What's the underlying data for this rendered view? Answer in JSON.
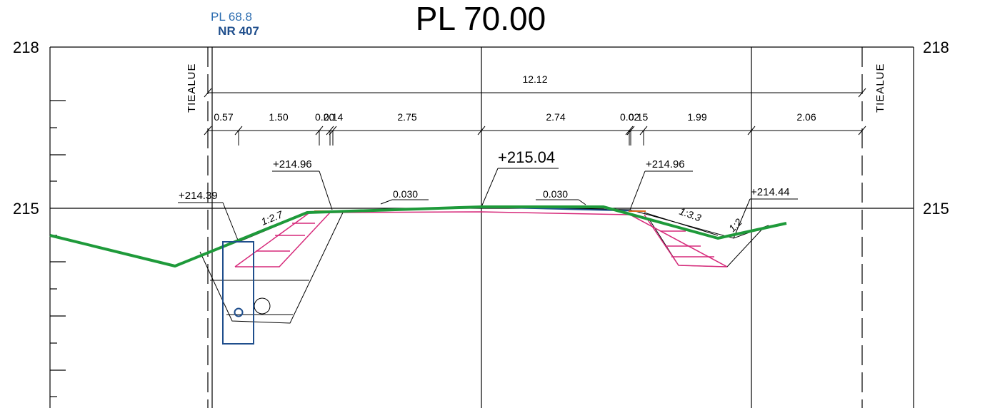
{
  "drawing": {
    "title": "PL 70.00",
    "reference": {
      "pl": "PL 68.8",
      "nr": "NR 407"
    },
    "y_axis": {
      "top_label": "218",
      "mid_label": "215"
    },
    "right_axis": {
      "top_label": "218",
      "mid_label": "215"
    },
    "tiealue_left": "TIEALUE",
    "tiealue_right": "TIEALUE",
    "total_width": "12.12",
    "segments": [
      "0.57",
      "1.50",
      "0.20",
      "0.14",
      "2.75",
      "2.74",
      "0.02",
      "0.15",
      "1.99",
      "2.06"
    ],
    "levels": {
      "left_ditch": "+214.39",
      "left_shoulder": "+214.96",
      "center": "+215.04",
      "right_shoulder": "+214.96",
      "right_ditch": "+214.44"
    },
    "crossfall_left": "0.030",
    "crossfall_right": "0.030",
    "slopes": {
      "left_inner": "1:2.7",
      "right_inner": "1:3.3",
      "right_outer": "1:2"
    },
    "colors": {
      "ground_line": "#1e9a3a",
      "structure_layers": "#d6297a",
      "pavement": "#1f4e8c",
      "pipe_box": "#1f4e8c",
      "reference_text": "#2b6cb0"
    }
  }
}
